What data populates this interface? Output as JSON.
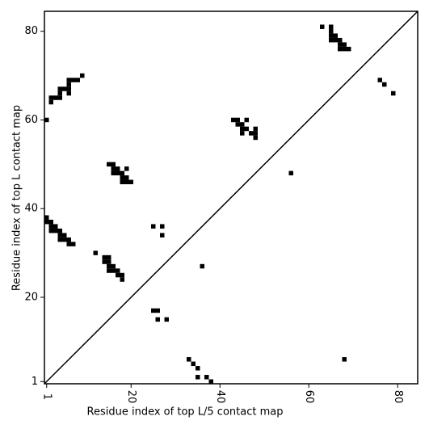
{
  "chart_data": {
    "type": "scatter",
    "marker": "square",
    "color": "#000000",
    "xlabel": "Residue index of top L/5 contact map",
    "ylabel": "Residue index of top L contact map",
    "xlim": [
      0.5,
      84.5
    ],
    "ylim": [
      0.5,
      84.5
    ],
    "xticks": [
      1,
      20,
      40,
      60,
      80
    ],
    "yticks": [
      1,
      20,
      40,
      60,
      80
    ],
    "series": [
      {
        "x": [
          1,
          2,
          2,
          3,
          4,
          4,
          4,
          5,
          6,
          6,
          6,
          6,
          7,
          8,
          9,
          63,
          65,
          65,
          65,
          66,
          66,
          65,
          67,
          67,
          68,
          67,
          68,
          69,
          76,
          77,
          79,
          43,
          44,
          44,
          45,
          46,
          45,
          46,
          45,
          47,
          48,
          48,
          48,
          56,
          15,
          16,
          16,
          17,
          16,
          17,
          18,
          19,
          18,
          19,
          18,
          19,
          20,
          1,
          1,
          2,
          2,
          3,
          2,
          3,
          4,
          4,
          5,
          4,
          5,
          6,
          6,
          7,
          12,
          14,
          15,
          14,
          15,
          15,
          16,
          15,
          16,
          17,
          17,
          18,
          18,
          25,
          27,
          27,
          36,
          25,
          26,
          26,
          28,
          33,
          34,
          35,
          35,
          37,
          38,
          68
        ],
        "values": [
          60,
          64,
          65,
          65,
          65,
          66,
          67,
          67,
          67,
          66,
          68,
          69,
          69,
          69,
          70,
          81,
          81,
          80,
          79,
          79,
          78,
          78,
          78,
          77,
          77,
          76,
          76,
          76,
          69,
          68,
          66,
          60,
          60,
          59,
          59,
          60,
          58,
          58,
          57,
          57,
          58,
          57,
          56,
          48,
          50,
          50,
          49,
          49,
          48,
          48,
          48,
          49,
          47,
          47,
          46,
          46,
          46,
          38,
          37,
          37,
          36,
          36,
          35,
          35,
          35,
          34,
          34,
          33,
          33,
          33,
          32,
          32,
          30,
          29,
          29,
          28,
          28,
          27,
          27,
          26,
          26,
          26,
          25,
          25,
          24,
          36,
          36,
          34,
          27,
          17,
          17,
          15,
          15,
          6,
          5,
          4,
          2,
          2,
          1,
          6
        ]
      }
    ]
  }
}
